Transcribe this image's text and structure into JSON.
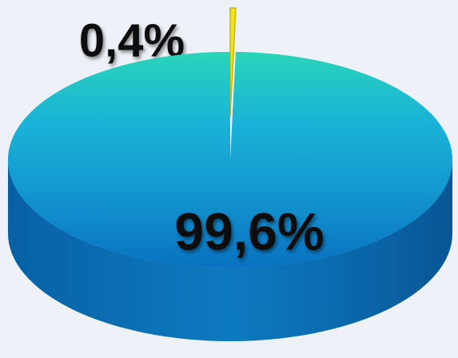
{
  "chart_data": {
    "type": "pie3d",
    "values": [
      0.4,
      99.6
    ],
    "value_labels": [
      "0,4%",
      "99,6%"
    ],
    "colors": [
      "#f2e41c",
      "#149bd8"
    ]
  }
}
